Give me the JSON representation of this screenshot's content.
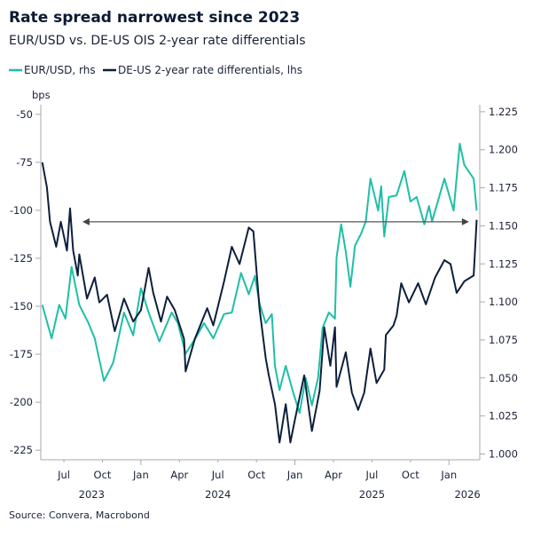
{
  "chart_data": {
    "type": "line",
    "title": "Rate spread narrowest since 2023",
    "subtitle": "EUR/USD vs. DE-US OIS 2-year rate differentials",
    "ylabel_left": "bps",
    "source": "Source: Convera, Macrobond",
    "legend_position": "top-left",
    "grid": false,
    "xlim": [
      2023.35,
      2026.2
    ],
    "ylim_left": [
      -230,
      -45
    ],
    "ylim_right": [
      0.9962,
      1.2296
    ],
    "left_ticks": [
      "-50",
      "-75",
      "-100",
      "-125",
      "-150",
      "-175",
      "-200",
      "-225"
    ],
    "right_ticks": [
      "1.225",
      "1.200",
      "1.175",
      "1.150",
      "1.125",
      "1.100",
      "1.075",
      "1.050",
      "1.025",
      "1.000"
    ],
    "x_ticks": [
      {
        "label": "Jul",
        "x": 2023.5
      },
      {
        "label": "Oct",
        "x": 2023.75
      },
      {
        "label": "Jan",
        "x": 2024.0
      },
      {
        "label": "Apr",
        "x": 2024.25
      },
      {
        "label": "Jul",
        "x": 2024.5
      },
      {
        "label": "Oct",
        "x": 2024.75
      },
      {
        "label": "Jan",
        "x": 2025.0
      },
      {
        "label": "Apr",
        "x": 2025.25
      },
      {
        "label": "Jul",
        "x": 2025.5
      },
      {
        "label": "Oct",
        "x": 2025.75
      },
      {
        "label": "Jan",
        "x": 2026.0
      }
    ],
    "year_labels": [
      {
        "label": "2023",
        "x": 2023.68
      },
      {
        "label": "2024",
        "x": 2024.5
      },
      {
        "label": "2025",
        "x": 2025.5
      },
      {
        "label": "2026",
        "x": 2026.12
      }
    ],
    "annotation_arrow": {
      "level": -106,
      "x_from": 2026.13,
      "x_to": 2023.62
    },
    "series": [
      {
        "name": "EUR/USD, rhs",
        "axis": "right",
        "color": "#1fbfa6",
        "x": [
          2023.36,
          2023.42,
          2023.47,
          2023.51,
          2023.55,
          2023.6,
          2023.66,
          2023.7,
          2023.76,
          2023.82,
          2023.85,
          2023.89,
          2023.95,
          2024.0,
          2024.05,
          2024.12,
          2024.2,
          2024.24,
          2024.29,
          2024.36,
          2024.41,
          2024.47,
          2024.54,
          2024.59,
          2024.65,
          2024.7,
          2024.74,
          2024.77,
          2024.81,
          2024.85,
          2024.87,
          2024.9,
          2024.94,
          2024.99,
          2025.03,
          2025.07,
          2025.11,
          2025.15,
          2025.18,
          2025.22,
          2025.26,
          2025.27,
          2025.3,
          2025.33,
          2025.36,
          2025.39,
          2025.43,
          2025.46,
          2025.49,
          2025.54,
          2025.56,
          2025.58,
          2025.61,
          2025.66,
          2025.71,
          2025.75,
          2025.79,
          2025.84,
          2025.87,
          2025.89,
          2025.97,
          2026.03,
          2026.07,
          2026.1,
          2026.16,
          2026.18
        ],
        "values": [
          1.098,
          1.076,
          1.098,
          1.089,
          1.123,
          1.098,
          1.086,
          1.076,
          1.048,
          1.06,
          1.074,
          1.093,
          1.078,
          1.109,
          1.093,
          1.074,
          1.093,
          1.086,
          1.066,
          1.077,
          1.086,
          1.076,
          1.092,
          1.093,
          1.119,
          1.105,
          1.117,
          1.099,
          1.086,
          1.092,
          1.058,
          1.042,
          1.058,
          1.04,
          1.027,
          1.05,
          1.032,
          1.05,
          1.083,
          1.093,
          1.089,
          1.129,
          1.151,
          1.133,
          1.11,
          1.137,
          1.145,
          1.153,
          1.181,
          1.16,
          1.176,
          1.143,
          1.169,
          1.17,
          1.186,
          1.166,
          1.169,
          1.151,
          1.163,
          1.153,
          1.181,
          1.16,
          1.204,
          1.19,
          1.181,
          1.16
        ]
      },
      {
        "name": "DE-US 2-year rate differentials, lhs",
        "axis": "left",
        "color": "#0d1f3c",
        "x": [
          2023.36,
          2023.39,
          2023.41,
          2023.45,
          2023.48,
          2023.52,
          2023.54,
          2023.56,
          2023.59,
          2023.6,
          2023.65,
          2023.7,
          2023.73,
          2023.78,
          2023.83,
          2023.89,
          2023.95,
          2024.0,
          2024.05,
          2024.08,
          2024.13,
          2024.17,
          2024.22,
          2024.28,
          2024.29,
          2024.35,
          2024.43,
          2024.47,
          2024.54,
          2024.59,
          2024.64,
          2024.7,
          2024.73,
          2024.77,
          2024.81,
          2024.83,
          2024.87,
          2024.9,
          2024.94,
          2024.97,
          2025.0,
          2025.06,
          2025.11,
          2025.16,
          2025.19,
          2025.23,
          2025.26,
          2025.27,
          2025.33,
          2025.37,
          2025.41,
          2025.45,
          2025.49,
          2025.53,
          2025.58,
          2025.59,
          2025.64,
          2025.66,
          2025.69,
          2025.74,
          2025.8,
          2025.85,
          2025.91,
          2025.97,
          2026.01,
          2026.05,
          2026.1,
          2026.16,
          2026.18
        ],
        "values": [
          -75,
          -88,
          -106,
          -119,
          -106,
          -121,
          -99,
          -121,
          -134,
          -123,
          -146,
          -135,
          -148,
          -144,
          -163,
          -146,
          -158,
          -152,
          -130,
          -143,
          -158,
          -145,
          -152,
          -167,
          -184,
          -167,
          -151,
          -160,
          -137,
          -119,
          -128,
          -109,
          -111,
          -151,
          -177,
          -186,
          -201,
          -221,
          -201,
          -221,
          -209,
          -186,
          -215,
          -194,
          -161,
          -181,
          -161,
          -192,
          -174,
          -195,
          -204,
          -195,
          -172,
          -190,
          -183,
          -165,
          -160,
          -155,
          -138,
          -148,
          -138,
          -149,
          -135,
          -126,
          -128,
          -143,
          -137,
          -134,
          -105
        ]
      }
    ]
  }
}
